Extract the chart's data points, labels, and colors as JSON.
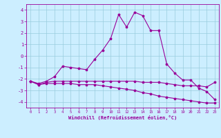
{
  "x": [
    0,
    1,
    2,
    3,
    4,
    5,
    6,
    7,
    8,
    9,
    10,
    11,
    12,
    13,
    14,
    15,
    16,
    17,
    18,
    19,
    20,
    21,
    22,
    23
  ],
  "line_main": [
    -2.2,
    -2.4,
    -2.2,
    -1.8,
    -0.9,
    -1.0,
    -1.1,
    -1.2,
    -0.3,
    0.5,
    1.5,
    3.6,
    2.5,
    3.8,
    3.5,
    2.2,
    2.2,
    -0.7,
    -1.5,
    -2.1,
    -2.1,
    -2.8,
    -3.1,
    -3.8
  ],
  "line_flat": [
    -2.2,
    -2.5,
    -2.3,
    -2.2,
    -2.2,
    -2.2,
    -2.2,
    -2.2,
    -2.2,
    -2.2,
    -2.2,
    -2.2,
    -2.2,
    -2.2,
    -2.3,
    -2.3,
    -2.3,
    -2.4,
    -2.5,
    -2.6,
    -2.6,
    -2.6,
    -2.7,
    -2.3
  ],
  "line_decline": [
    -2.2,
    -2.5,
    -2.4,
    -2.4,
    -2.4,
    -2.4,
    -2.5,
    -2.5,
    -2.5,
    -2.6,
    -2.7,
    -2.8,
    -2.9,
    -3.0,
    -3.2,
    -3.3,
    -3.5,
    -3.6,
    -3.7,
    -3.8,
    -3.9,
    -4.0,
    -4.1,
    -4.1
  ],
  "bg_color": "#cceeff",
  "grid_color": "#99ccdd",
  "line_color": "#990099",
  "xlabel": "Windchill (Refroidissement éolien,°C)",
  "ylim": [
    -4.5,
    4.5
  ],
  "xlim": [
    -0.5,
    23.5
  ],
  "yticks": [
    -4,
    -3,
    -2,
    -1,
    0,
    1,
    2,
    3,
    4
  ],
  "xticks": [
    0,
    1,
    2,
    3,
    4,
    5,
    6,
    7,
    8,
    9,
    10,
    11,
    12,
    13,
    14,
    15,
    16,
    17,
    18,
    19,
    20,
    21,
    22,
    23
  ]
}
